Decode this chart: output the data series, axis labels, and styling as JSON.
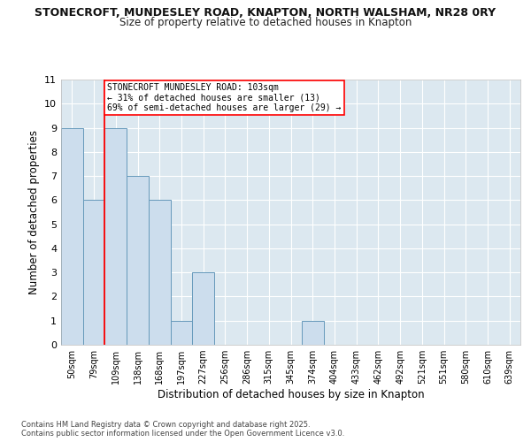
{
  "title_line1": "STONECROFT, MUNDESLEY ROAD, KNAPTON, NORTH WALSHAM, NR28 0RY",
  "title_line2": "Size of property relative to detached houses in Knapton",
  "xlabel": "Distribution of detached houses by size in Knapton",
  "ylabel": "Number of detached properties",
  "bar_labels": [
    "50sqm",
    "79sqm",
    "109sqm",
    "138sqm",
    "168sqm",
    "197sqm",
    "227sqm",
    "256sqm",
    "286sqm",
    "315sqm",
    "345sqm",
    "374sqm",
    "404sqm",
    "433sqm",
    "462sqm",
    "492sqm",
    "521sqm",
    "551sqm",
    "580sqm",
    "610sqm",
    "639sqm"
  ],
  "bar_values": [
    9,
    6,
    9,
    7,
    6,
    1,
    3,
    0,
    0,
    0,
    0,
    1,
    0,
    0,
    0,
    0,
    0,
    0,
    0,
    0,
    0
  ],
  "bar_color": "#ccdded",
  "bar_edge_color": "#6699bb",
  "ylim": [
    0,
    11
  ],
  "yticks": [
    0,
    1,
    2,
    3,
    4,
    5,
    6,
    7,
    8,
    9,
    10,
    11
  ],
  "red_line_bin": 1.5,
  "annotation_text": "STONECROFT MUNDESLEY ROAD: 103sqm\n← 31% of detached houses are smaller (13)\n69% of semi-detached houses are larger (29) →",
  "footer_text": "Contains HM Land Registry data © Crown copyright and database right 2025.\nContains public sector information licensed under the Open Government Licence v3.0.",
  "fig_background": "#ffffff",
  "plot_background": "#dce8f0",
  "grid_color": "#ffffff"
}
